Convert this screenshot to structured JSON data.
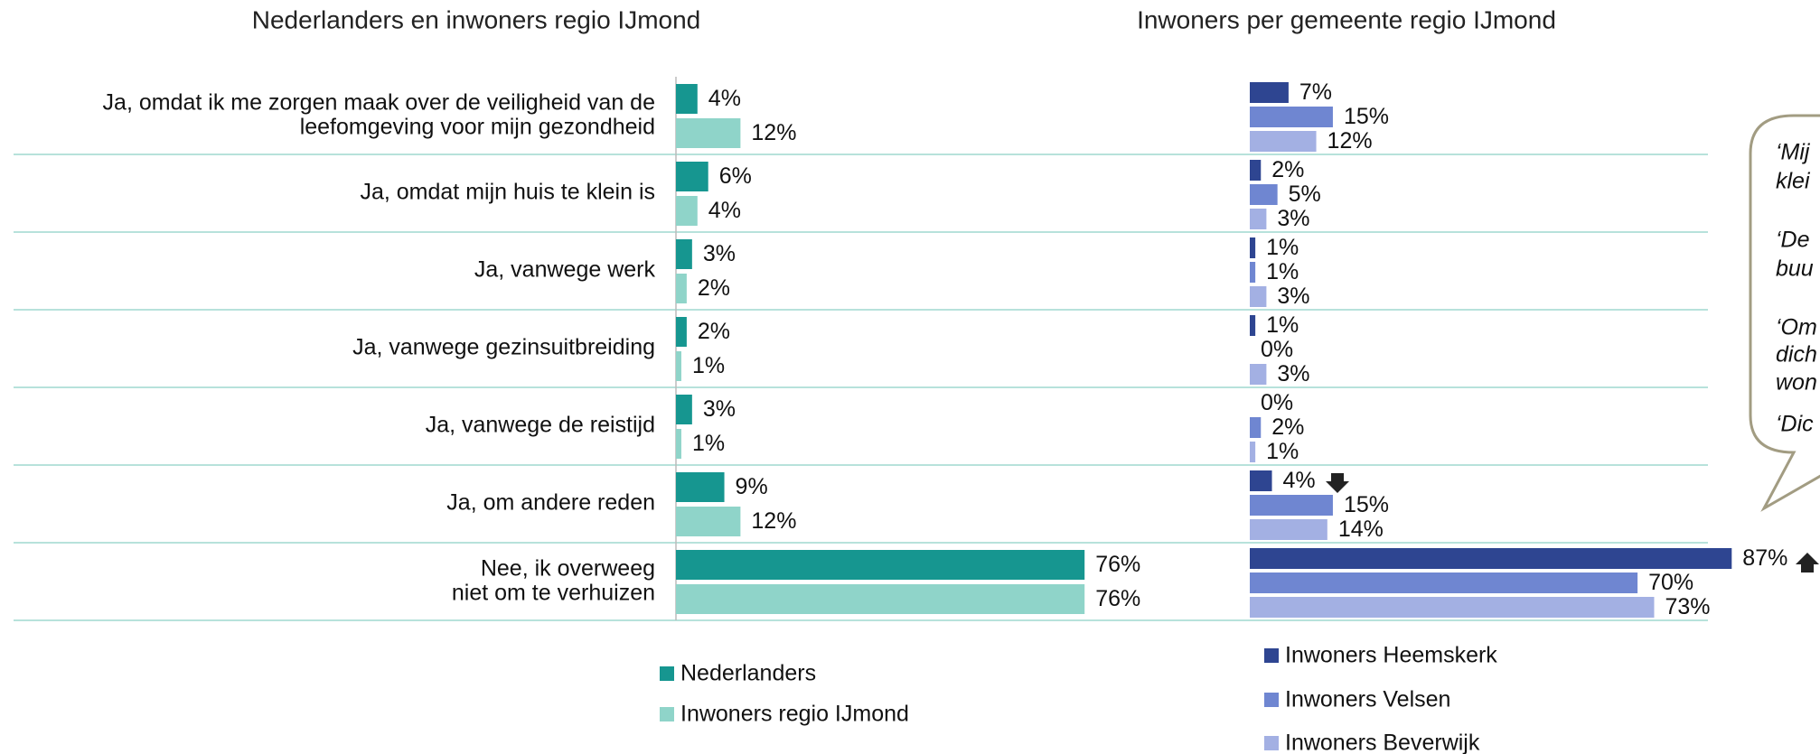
{
  "chart_data": [
    {
      "type": "bar",
      "orientation": "horizontal",
      "title": "Nederlanders en inwoners regio IJmond",
      "categories": [
        "Ja, omdat ik me zorgen maak over de veiligheid van de\nleefomgeving voor mijn gezondheid",
        "Ja, omdat mijn huis te klein is",
        "Ja, vanwege werk",
        "Ja, vanwege gezinsuitbreiding",
        "Ja, vanwege de reistijd",
        "Ja, om andere reden",
        "Nee, ik overweeg\nniet om te verhuizen"
      ],
      "series": [
        {
          "name": "Nederlanders",
          "color": "#169690",
          "values": [
            4,
            6,
            3,
            2,
            3,
            9,
            76
          ],
          "value_labels": [
            "4%",
            "6%",
            "3%",
            "2%",
            "3%",
            "9%",
            "76%"
          ]
        },
        {
          "name": "Inwoners regio IJmond",
          "color": "#8fd4c9",
          "values": [
            12,
            4,
            2,
            1,
            1,
            12,
            76
          ],
          "value_labels": [
            "12%",
            "4%",
            "2%",
            "1%",
            "1%",
            "12%",
            "76%"
          ]
        }
      ],
      "xlim": [
        0,
        100
      ]
    },
    {
      "type": "bar",
      "orientation": "horizontal",
      "title": "Inwoners per gemeente regio IJmond",
      "categories": [
        null,
        null,
        null,
        null,
        null,
        null,
        null
      ],
      "series": [
        {
          "name": "Inwoners Heemskerk",
          "color": "#2e4591",
          "values": [
            7,
            2,
            1,
            1,
            0,
            4,
            87
          ],
          "value_labels": [
            "7%",
            "2%",
            "1%",
            "1%",
            "0%",
            "4%",
            "87%"
          ]
        },
        {
          "name": "Inwoners Velsen",
          "color": "#6f86d1",
          "values": [
            15,
            5,
            1,
            0,
            2,
            15,
            70
          ],
          "value_labels": [
            "15%",
            "5%",
            "1%",
            "0%",
            "2%",
            "15%",
            "70%"
          ]
        },
        {
          "name": "Inwoners Beverwijk",
          "color": "#a3b0e3",
          "values": [
            12,
            3,
            3,
            3,
            1,
            14,
            73
          ],
          "value_labels": [
            "12%",
            "3%",
            "3%",
            "3%",
            "1%",
            "14%",
            "73%"
          ]
        }
      ],
      "xlim": [
        0,
        100
      ]
    }
  ],
  "callout": {
    "lines": [
      "‘Mij",
      "klei",
      "‘De",
      "buu",
      "‘Om",
      "dich",
      "won",
      "‘Dic"
    ]
  }
}
